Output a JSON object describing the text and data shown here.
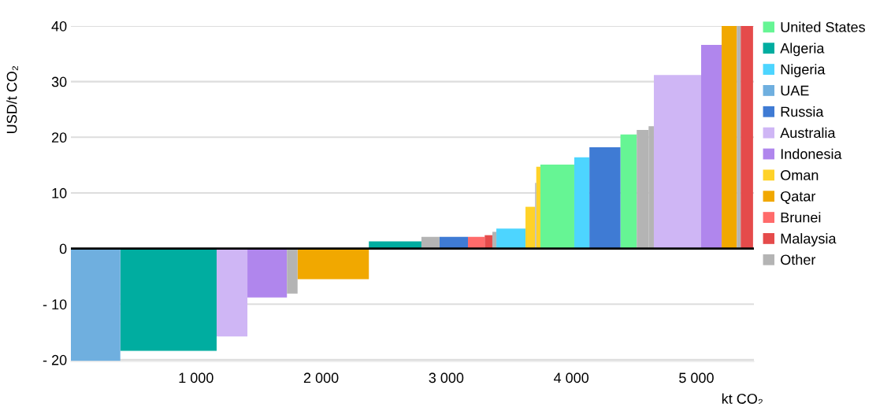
{
  "chart_data": {
    "type": "area",
    "xlabel": "kt CO₂",
    "ylabel": "USD/t CO₂",
    "xlim": [
      0,
      5460
    ],
    "xticks": [
      {
        "value": 1000,
        "label": "1 000"
      },
      {
        "value": 2000,
        "label": "2 000"
      },
      {
        "value": 3000,
        "label": "3 000"
      },
      {
        "value": 4000,
        "label": "4 000"
      },
      {
        "value": 5000,
        "label": "5 000"
      }
    ],
    "ylim": [
      -20.3,
      40
    ],
    "yticks": [
      {
        "value": -20,
        "label": "- 20"
      },
      {
        "value": -10,
        "label": "- 10"
      },
      0,
      10,
      20,
      30,
      40
    ],
    "grid": "y",
    "legend": "right",
    "ref_lines": [
      {
        "axis": "y",
        "value": 0,
        "color": "#000000"
      }
    ],
    "series": [
      {
        "name": "United States",
        "color": "#66f594",
        "x": [
          3753,
          4024,
          4393,
          4523
        ],
        "values": [
          15.1,
          15.1,
          20.5,
          20.5
        ]
      },
      {
        "name": "Algeria",
        "color": "#00ada0",
        "x": [
          395,
          1165,
          2382,
          2802
        ],
        "values": [
          -18.4,
          -18.4,
          1.3,
          1.3
        ]
      },
      {
        "name": "Nigeria",
        "color": "#4dd5ff",
        "x": [
          3401,
          3634,
          4024,
          4145
        ],
        "values": [
          3.6,
          3.6,
          16.4,
          16.4
        ]
      },
      {
        "name": "UAE",
        "color": "#6fafdf",
        "x": [
          0,
          395
        ],
        "values": [
          -20.2,
          -20.2
        ]
      },
      {
        "name": "Russia",
        "color": "#3f7bd4",
        "x": [
          2947,
          3174,
          4145,
          4393
        ],
        "values": [
          2.1,
          2.1,
          18.2,
          18.2
        ]
      },
      {
        "name": "Australia",
        "color": "#cfb6f5",
        "x": [
          1165,
          1411,
          4660,
          5038
        ],
        "values": [
          -15.8,
          -15.8,
          31.2,
          31.2
        ]
      },
      {
        "name": "Indonesia",
        "color": "#b086ed",
        "x": [
          1411,
          1727,
          5038,
          5202
        ],
        "values": [
          -8.8,
          -8.8,
          36.6,
          36.6
        ]
      },
      {
        "name": "Oman",
        "color": "#ffd228",
        "x": [
          3634,
          3711,
          3720,
          3753
        ],
        "values": [
          7.5,
          7.5,
          14.7,
          14.7
        ]
      },
      {
        "name": "Qatar",
        "color": "#f1a800",
        "x": [
          1812,
          2382,
          5202,
          5323
        ],
        "values": [
          -5.5,
          -5.5,
          40,
          40
        ]
      },
      {
        "name": "Brunei",
        "color": "#ff6b6b",
        "x": [
          3174,
          3308
        ],
        "values": [
          2.1,
          2.1
        ]
      },
      {
        "name": "Malaysia",
        "color": "#e54b4b",
        "x": [
          3308,
          3369,
          5354,
          5453
        ],
        "values": [
          2.4,
          2.4,
          40,
          40
        ]
      },
      {
        "name": "Other",
        "color": "#b4b4b4",
        "x": [
          1727,
          1812,
          2802,
          2947,
          3369,
          3401,
          3711,
          3720,
          4523,
          4618,
          4618,
          4660,
          5323,
          5354
        ],
        "values": [
          -8.1,
          -8.1,
          2.1,
          2.1,
          3.0,
          3.0,
          11.8,
          11.8,
          21.3,
          21.3,
          22.0,
          22.0,
          40,
          40
        ]
      }
    ]
  }
}
